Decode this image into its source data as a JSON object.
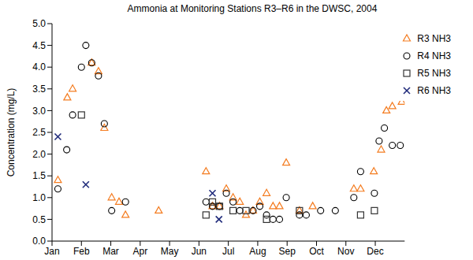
{
  "chart_data": {
    "type": "scatter",
    "title": "Ammonia at Monitoring Stations R3–R6 in the DWSC, 2004",
    "y_label": "Concentration (mg/L)",
    "xlim": [
      0,
      12
    ],
    "xticks": [
      {
        "value": 0,
        "label": "Jan"
      },
      {
        "value": 1,
        "label": "Feb"
      },
      {
        "value": 2,
        "label": "Mar"
      },
      {
        "value": 3,
        "label": "Apr"
      },
      {
        "value": 4,
        "label": "May"
      },
      {
        "value": 5,
        "label": "Jun"
      },
      {
        "value": 6,
        "label": "Jul"
      },
      {
        "value": 7,
        "label": "Aug"
      },
      {
        "value": 8,
        "label": "Sep"
      },
      {
        "value": 9,
        "label": "Oct"
      },
      {
        "value": 10,
        "label": "Nov"
      },
      {
        "value": 11,
        "label": "Dec"
      }
    ],
    "ylim": [
      0,
      5
    ],
    "yticks": [
      {
        "value": 0,
        "label": "0.0"
      },
      {
        "value": 0.5,
        "label": "0.5"
      },
      {
        "value": 1,
        "label": "1.0"
      },
      {
        "value": 1.5,
        "label": "1.5"
      },
      {
        "value": 2,
        "label": "2.0"
      },
      {
        "value": 2.5,
        "label": "2.5"
      },
      {
        "value": 3,
        "label": "3.0"
      },
      {
        "value": 3.5,
        "label": "3.5"
      },
      {
        "value": 4,
        "label": "4.0"
      },
      {
        "value": 4.5,
        "label": "4.5"
      },
      {
        "value": 5,
        "label": "5.0"
      }
    ],
    "grid": false,
    "legend": "upper right",
    "series": [
      {
        "name": "R3 NH3",
        "color": "#f47c20",
        "marker": "triangle",
        "x": [
          0.2,
          0.52,
          0.7,
          1.35,
          1.58,
          1.78,
          2.03,
          2.28,
          2.5,
          3.63,
          5.24,
          5.46,
          5.7,
          5.93,
          6.16,
          6.39,
          6.6,
          6.84,
          7.07,
          7.3,
          7.52,
          7.74,
          7.97,
          8.42,
          8.87,
          10.27,
          10.5,
          10.95,
          11.2,
          11.38,
          11.58,
          11.9
        ],
        "values": [
          1.4,
          3.3,
          3.5,
          4.1,
          3.9,
          2.6,
          1.0,
          0.9,
          0.6,
          0.7,
          1.6,
          0.8,
          0.8,
          1.2,
          1.0,
          0.9,
          0.6,
          0.7,
          0.9,
          1.1,
          0.8,
          0.8,
          1.8,
          0.7,
          0.8,
          1.2,
          1.2,
          1.6,
          2.1,
          3.0,
          3.1,
          3.2
        ]
      },
      {
        "name": "R4 NH3",
        "color": "#000000",
        "marker": "circle",
        "x": [
          0.2,
          0.5,
          0.7,
          1.0,
          1.15,
          1.35,
          1.58,
          1.78,
          2.03,
          2.5,
          5.24,
          5.46,
          5.7,
          5.93,
          6.16,
          6.39,
          6.84,
          7.07,
          7.3,
          7.52,
          7.74,
          7.97,
          8.42,
          8.65,
          9.14,
          9.64,
          10.27,
          10.5,
          10.97,
          11.13,
          11.31,
          11.58,
          11.85
        ],
        "values": [
          1.2,
          2.1,
          2.9,
          4.0,
          4.5,
          4.1,
          3.8,
          2.7,
          0.7,
          0.9,
          0.9,
          0.8,
          0.8,
          1.1,
          0.9,
          0.7,
          0.7,
          0.8,
          0.6,
          0.5,
          0.5,
          1.0,
          0.6,
          0.6,
          0.7,
          0.7,
          1.0,
          1.6,
          1.1,
          2.3,
          2.6,
          2.2,
          2.2
        ]
      },
      {
        "name": "R5 NH3",
        "color": "#333333",
        "marker": "square",
        "x": [
          1.0,
          5.24,
          5.46,
          5.7,
          6.16,
          6.6,
          7.3,
          8.42,
          10.5,
          10.97
        ],
        "values": [
          2.9,
          0.6,
          0.9,
          0.8,
          0.7,
          0.7,
          0.5,
          0.7,
          0.6,
          0.7
        ]
      },
      {
        "name": "R6 NH3",
        "color": "#1f2a7a",
        "marker": "x",
        "x": [
          0.2,
          1.15,
          5.46,
          5.68
        ],
        "values": [
          2.4,
          1.3,
          1.1,
          0.5
        ]
      }
    ]
  }
}
